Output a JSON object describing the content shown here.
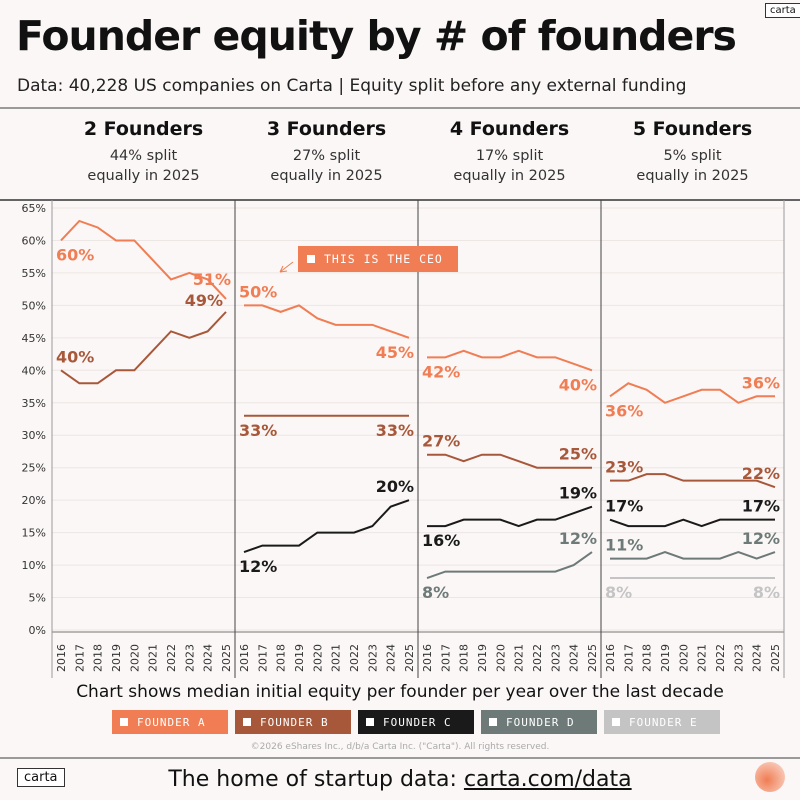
{
  "header": {
    "title": "Founder equity by # of founders",
    "subtitle": "Data: 40,228 US companies on Carta | Equity split before any external funding",
    "logo": "carta"
  },
  "colors": {
    "Founder A": "#f07d53",
    "Founder B": "#a8583a",
    "Founder C": "#1a1a1a",
    "Founder D": "#6d7a78",
    "Founder E": "#c4c4c4"
  },
  "chart_data": {
    "type": "line",
    "ylim": [
      0,
      65
    ],
    "yticks": [
      "0%",
      "5%",
      "10%",
      "15%",
      "20%",
      "25%",
      "30%",
      "35%",
      "40%",
      "45%",
      "50%",
      "55%",
      "60%",
      "65%"
    ],
    "x": [
      "2016",
      "2017",
      "2018",
      "2019",
      "2020",
      "2021",
      "2022",
      "2023",
      "2024",
      "2025"
    ],
    "grid": true,
    "legend_placement": "bottom",
    "panels": [
      {
        "title": "2 Founders",
        "subtitle": "44% split\nequally in 2025",
        "series": [
          {
            "name": "Founder A",
            "values": [
              60,
              63,
              62,
              60,
              60,
              57,
              54,
              55,
              54,
              51
            ],
            "start_label": "60%",
            "end_label": "51%"
          },
          {
            "name": "Founder B",
            "values": [
              40,
              38,
              38,
              40,
              40,
              43,
              46,
              45,
              46,
              49
            ],
            "start_label": "40%",
            "end_label": "49%"
          }
        ]
      },
      {
        "title": "3 Founders",
        "subtitle": "27% split\nequally in 2025",
        "series": [
          {
            "name": "Founder A",
            "values": [
              50,
              50,
              49,
              50,
              48,
              47,
              47,
              47,
              46,
              45
            ],
            "start_label": "50%",
            "end_label": "45%"
          },
          {
            "name": "Founder B",
            "values": [
              33,
              33,
              33,
              33,
              33,
              33,
              33,
              33,
              33,
              33
            ],
            "start_label": "33%",
            "end_label": "33%"
          },
          {
            "name": "Founder C",
            "values": [
              12,
              13,
              13,
              13,
              15,
              15,
              15,
              16,
              19,
              20
            ],
            "start_label": "12%",
            "end_label": "20%"
          }
        ]
      },
      {
        "title": "4 Founders",
        "subtitle": "17% split\nequally in 2025",
        "series": [
          {
            "name": "Founder A",
            "values": [
              42,
              42,
              43,
              42,
              42,
              43,
              42,
              42,
              41,
              40
            ],
            "start_label": "42%",
            "end_label": "40%"
          },
          {
            "name": "Founder B",
            "values": [
              27,
              27,
              26,
              27,
              27,
              26,
              25,
              25,
              25,
              25
            ],
            "start_label": "27%",
            "end_label": "25%"
          },
          {
            "name": "Founder C",
            "values": [
              16,
              16,
              17,
              17,
              17,
              16,
              17,
              17,
              18,
              19
            ],
            "start_label": "16%",
            "end_label": "19%"
          },
          {
            "name": "Founder D",
            "values": [
              8,
              9,
              9,
              9,
              9,
              9,
              9,
              9,
              10,
              12
            ],
            "start_label": "8%",
            "end_label": "12%"
          }
        ]
      },
      {
        "title": "5 Founders",
        "subtitle": "5% split\nequally in 2025",
        "series": [
          {
            "name": "Founder A",
            "values": [
              36,
              38,
              37,
              35,
              36,
              37,
              37,
              35,
              36,
              36
            ],
            "start_label": "36%",
            "end_label": "36%"
          },
          {
            "name": "Founder B",
            "values": [
              23,
              23,
              24,
              24,
              23,
              23,
              23,
              23,
              23,
              22
            ],
            "start_label": "23%",
            "end_label": "22%"
          },
          {
            "name": "Founder C",
            "values": [
              17,
              16,
              16,
              16,
              17,
              16,
              17,
              17,
              17,
              17
            ],
            "start_label": "17%",
            "end_label": "17%"
          },
          {
            "name": "Founder D",
            "values": [
              11,
              11,
              11,
              12,
              11,
              11,
              11,
              12,
              11,
              12
            ],
            "start_label": "11%",
            "end_label": "12%"
          },
          {
            "name": "Founder E",
            "values": [
              8,
              8,
              8,
              8,
              8,
              8,
              8,
              8,
              8,
              8
            ],
            "start_label": "8%",
            "end_label": "8%"
          }
        ]
      }
    ],
    "annotation": "THIS IS THE CEO",
    "caption": "Chart shows median initial equity per founder per year over the last decade",
    "legend": [
      "FOUNDER A",
      "FOUNDER B",
      "FOUNDER C",
      "FOUNDER D",
      "FOUNDER E"
    ]
  },
  "footer": {
    "copyright": "©2026 eShares Inc., d/b/a Carta Inc. (\"Carta\"). All rights reserved.",
    "tagline": "The home of startup data: ",
    "link": "carta.com/data",
    "logo": "carta"
  }
}
